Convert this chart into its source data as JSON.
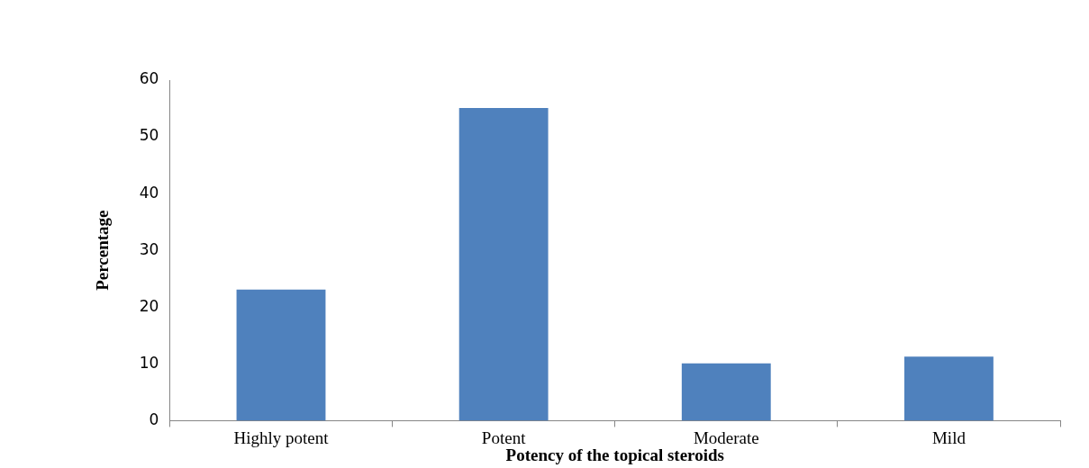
{
  "chart_data": {
    "type": "bar",
    "xlabel": "Potency of the topical steroids",
    "ylabel": "Percentage",
    "categories": [
      "Highly potent",
      "Potent",
      "Moderate",
      "Mild"
    ],
    "values": [
      23.1,
      55.1,
      10.1,
      11.3
    ],
    "color": "#4f81bd",
    "ylim": [
      0,
      60
    ],
    "yticks": [
      0,
      10,
      20,
      30,
      40,
      50,
      60
    ]
  }
}
